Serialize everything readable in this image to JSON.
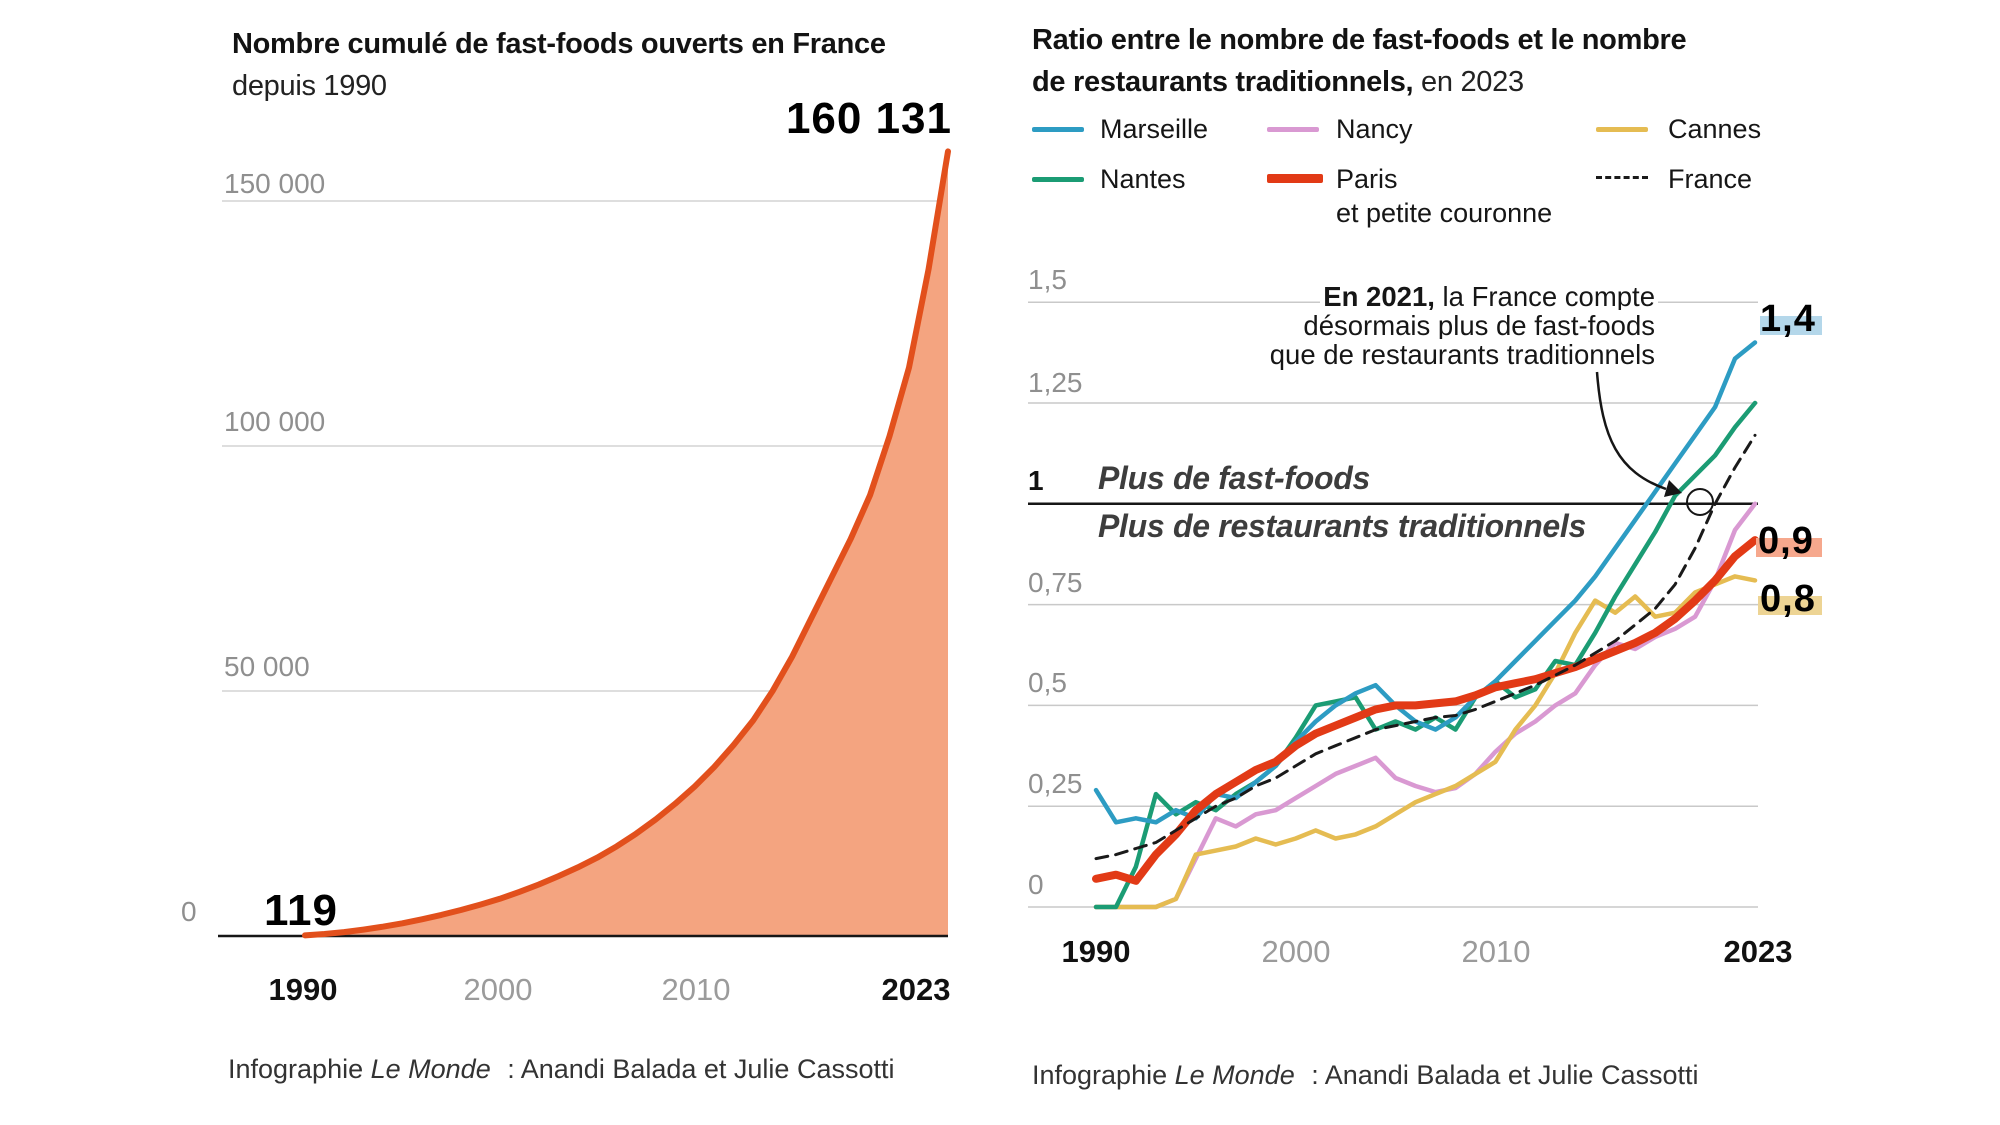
{
  "left_chart": {
    "title": "Nombre cumulé de fast-foods ouverts en France",
    "subtitle": "depuis 1990",
    "peak_label": "160 131",
    "start_label": "119",
    "y_ticks": {
      "t150": "150 000",
      "t100": "100 000",
      "t50": "50 000",
      "t0": "0"
    },
    "x_ticks": {
      "x1990": "1990",
      "x2000": "2000",
      "x2010": "2010",
      "x2023": "2023"
    }
  },
  "right_chart": {
    "title_line1": "Ratio entre le nombre de fast-foods et le nombre",
    "title_line2_bold": "de restaurants traditionnels,",
    "title_line2_rest": " en 2023",
    "legend": {
      "marseille": {
        "label": "Marseille",
        "color": "#2d9cc3"
      },
      "nancy": {
        "label": "Nancy",
        "color": "#d999d2"
      },
      "cannes": {
        "label": "Cannes",
        "color": "#e5bc52"
      },
      "nantes": {
        "label": "Nantes",
        "color": "#1b9c74"
      },
      "paris": {
        "label": "Paris",
        "label2": "et petite couronne",
        "color": "#e23a16"
      },
      "france": {
        "label": "France",
        "color": "#1a1a1a"
      }
    },
    "zone_label_top": "Plus de fast-foods",
    "zone_label_bottom": "Plus de restaurants traditionnels",
    "annotation": {
      "bold": "En 2021,",
      "line1_rest": " la France compte",
      "line2": "désormais plus de fast-foods",
      "line3": "que de restaurants traditionnels"
    },
    "end_labels": {
      "marseille": {
        "text": "1,4",
        "bg": "#b4d7ea"
      },
      "paris": {
        "text": "0,9",
        "bg": "#f6a88d"
      },
      "cannes": {
        "text": "0,8",
        "bg": "#edd494"
      }
    },
    "y_ticks": {
      "t150": "1,5",
      "t125": "1,25",
      "t100": "1",
      "t075": "0,75",
      "t050": "0,5",
      "t025": "0,25",
      "t0": "0"
    },
    "x_ticks": {
      "x1990": "1990",
      "x2000": "2000",
      "x2010": "2010",
      "x2023": "2023"
    }
  },
  "footer": {
    "prefix": "Infographie",
    "brand": "Le Monde",
    "suffix": ": Anandi Balada et Julie Cassotti"
  },
  "chart_data": [
    {
      "id": "cumulative-fast-foods",
      "type": "area",
      "title": "Nombre cumulé de fast-foods ouverts en France depuis 1990",
      "x": [
        1990,
        1991,
        1992,
        1993,
        1994,
        1995,
        1996,
        1997,
        1998,
        1999,
        2000,
        2001,
        2002,
        2003,
        2004,
        2005,
        2006,
        2007,
        2008,
        2009,
        2010,
        2011,
        2012,
        2013,
        2014,
        2015,
        2016,
        2017,
        2018,
        2019,
        2020,
        2021,
        2022,
        2023
      ],
      "values": [
        119,
        400,
        800,
        1300,
        1900,
        2600,
        3400,
        4300,
        5300,
        6400,
        7600,
        9000,
        10500,
        12200,
        14000,
        16000,
        18300,
        20900,
        23800,
        27000,
        30500,
        34500,
        39000,
        44000,
        50000,
        57000,
        65000,
        73000,
        81000,
        90000,
        102000,
        116000,
        136000,
        160131
      ],
      "first_value": 119,
      "last_value": 160131,
      "ylim": [
        0,
        160131
      ],
      "yticks": [
        0,
        50000,
        100000,
        150000
      ],
      "ytick_labels": [
        "0",
        "50 000",
        "100 000",
        "150 000"
      ],
      "xtick_labels": [
        "1990",
        "2000",
        "2010",
        "2023"
      ],
      "line_color": "#e2501c",
      "fill_color": "#f4a480",
      "grid": true,
      "legend_position": "none"
    },
    {
      "id": "ratio-fastfood-vs-traditional",
      "type": "line",
      "title": "Ratio entre le nombre de fast-foods et le nombre de restaurants traditionnels, en 2023",
      "x": [
        1990,
        1991,
        1992,
        1993,
        1994,
        1995,
        1996,
        1997,
        1998,
        1999,
        2000,
        2001,
        2002,
        2003,
        2004,
        2005,
        2006,
        2007,
        2008,
        2009,
        2010,
        2011,
        2012,
        2013,
        2014,
        2015,
        2016,
        2017,
        2018,
        2019,
        2020,
        2021,
        2022,
        2023
      ],
      "series": [
        {
          "name": "Marseille",
          "color": "#2d9cc3",
          "width": 4.5,
          "values": [
            0.29,
            0.21,
            0.22,
            0.21,
            0.24,
            0.22,
            0.28,
            0.27,
            0.31,
            0.35,
            0.41,
            0.46,
            0.5,
            0.53,
            0.55,
            0.5,
            0.46,
            0.44,
            0.47,
            0.52,
            0.56,
            0.61,
            0.66,
            0.71,
            0.76,
            0.82,
            0.89,
            0.96,
            1.03,
            1.1,
            1.17,
            1.24,
            1.36,
            1.4
          ]
        },
        {
          "name": "Nantes",
          "color": "#1b9c74",
          "width": 4.5,
          "values": [
            0,
            0,
            0.1,
            0.28,
            0.23,
            0.26,
            0.24,
            0.28,
            0.31,
            0.35,
            0.42,
            0.5,
            0.51,
            0.52,
            0.44,
            0.46,
            0.44,
            0.47,
            0.44,
            0.52,
            0.56,
            0.52,
            0.54,
            0.61,
            0.6,
            0.68,
            0.77,
            0.85,
            0.93,
            1.02,
            1.07,
            1.12,
            1.19,
            1.25
          ]
        },
        {
          "name": "Nancy",
          "color": "#d999d2",
          "width": 4.5,
          "values": [
            0,
            0,
            0,
            0,
            0.02,
            0.12,
            0.22,
            0.2,
            0.23,
            0.24,
            0.27,
            0.3,
            0.33,
            0.35,
            0.37,
            0.32,
            0.3,
            0.285,
            0.295,
            0.33,
            0.385,
            0.43,
            0.46,
            0.5,
            0.53,
            0.6,
            0.655,
            0.64,
            0.67,
            0.69,
            0.72,
            0.81,
            0.935,
            1.0
          ]
        },
        {
          "name": "Cannes",
          "color": "#e5bc52",
          "width": 4.5,
          "values": [
            0,
            0,
            0,
            0,
            0.02,
            0.13,
            0.14,
            0.15,
            0.17,
            0.155,
            0.17,
            0.19,
            0.17,
            0.18,
            0.2,
            0.23,
            0.26,
            0.28,
            0.3,
            0.33,
            0.36,
            0.44,
            0.5,
            0.58,
            0.68,
            0.76,
            0.73,
            0.77,
            0.72,
            0.73,
            0.78,
            0.8,
            0.82,
            0.81
          ]
        },
        {
          "name": "Paris et petite couronne",
          "color": "#e23a16",
          "width": 8,
          "values": [
            0.07,
            0.08,
            0.065,
            0.13,
            0.18,
            0.24,
            0.28,
            0.31,
            0.34,
            0.36,
            0.4,
            0.43,
            0.45,
            0.47,
            0.49,
            0.5,
            0.5,
            0.505,
            0.51,
            0.525,
            0.545,
            0.555,
            0.565,
            0.58,
            0.595,
            0.615,
            0.635,
            0.655,
            0.68,
            0.715,
            0.76,
            0.81,
            0.87,
            0.91
          ]
        },
        {
          "name": "France",
          "color": "#1a1a1a",
          "width": 3,
          "dashed": true,
          "values": [
            0.12,
            0.13,
            0.145,
            0.16,
            0.19,
            0.22,
            0.25,
            0.27,
            0.3,
            0.32,
            0.35,
            0.38,
            0.4,
            0.42,
            0.44,
            0.45,
            0.46,
            0.47,
            0.475,
            0.49,
            0.51,
            0.53,
            0.55,
            0.575,
            0.6,
            0.63,
            0.66,
            0.7,
            0.74,
            0.8,
            0.89,
            1.0,
            1.09,
            1.17
          ]
        }
      ],
      "ylim": [
        0,
        1.5
      ],
      "yticks": [
        0,
        0.25,
        0.5,
        0.75,
        1,
        1.25,
        1.5
      ],
      "ytick_labels": [
        "0",
        "0,25",
        "0,5",
        "0,75",
        "1",
        "1,25",
        "1,5"
      ],
      "xtick_labels": [
        "1990",
        "2000",
        "2010",
        "2023"
      ],
      "annotation": {
        "year": 2021,
        "value": 1.0,
        "text": "En 2021, la France compte désormais plus de fast-foods que de restaurants traditionnels"
      },
      "end_value_labels": {
        "Marseille": "1,4",
        "Paris et petite couronne": "0,9",
        "Cannes": "0,8"
      },
      "grid": true,
      "legend_position": "top"
    }
  ]
}
